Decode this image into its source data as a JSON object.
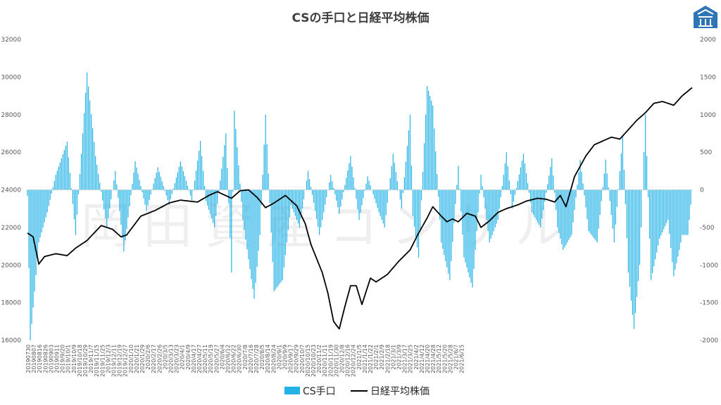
{
  "chart_data": {
    "type": "bar",
    "title": "CSの手口と日経平均株価",
    "watermark": "岡田資産コンサル",
    "colors": {
      "bar": "#22B2E6",
      "line": "#000000",
      "logo": "#2E75B6"
    },
    "legend_position": "bottom",
    "grid": false,
    "y_left": {
      "min": 16000,
      "max": 32000,
      "ticks": [
        16000,
        18000,
        20000,
        22000,
        24000,
        26000,
        28000,
        30000,
        32000
      ]
    },
    "y_right": {
      "min": -2000,
      "max": 2000,
      "ticks": [
        -2000,
        -1500,
        -1000,
        -500,
        0,
        500,
        1000,
        1500,
        2000
      ]
    },
    "x_ticks": [
      "20190730",
      "20190807",
      "20190816",
      "20190826",
      "20190903",
      "20190911",
      "2019/9/20",
      "2019/10/1",
      "2019/10/9",
      "2019/10/18",
      "2019/10/29",
      "2019/11/7",
      "2019/11/15",
      "2019/11/25",
      "2019/12/3",
      "2019/12/11",
      "2019/12/19",
      "2019/12/27",
      "2020/1/10",
      "2020/1/21",
      "2020/1/29",
      "2020/2/6",
      "2020/2/17",
      "2020/2/26",
      "2020/3/5",
      "2020/3/13",
      "2020/3/23",
      "2020/4/1",
      "2020/4/9",
      "2020/4/17",
      "2020/4/27",
      "2020/5/11",
      "2020/5/19",
      "2020/5/27",
      "2020/6/4",
      "2020/6/12",
      "2020/6/22",
      "2020/6/30",
      "2020/7/8",
      "2020/7/16",
      "2020/7/28",
      "2020/8/5",
      "2020/8/14",
      "2020/8/24",
      "2020/9/1",
      "2020/9/9",
      "2020/9/17",
      "2020/9/29",
      "2020/10/7",
      "2020/10/15",
      "2020/10/23",
      "2020/11/2",
      "2020/11/11",
      "2020/11/19",
      "2020/11/30",
      "2020/12/8",
      "2020/12/16",
      "2020/12/24",
      "2021/1/5",
      "2021/1/14",
      "2021/1/22",
      "2021/2/1",
      "2021/2/9",
      "2021/2/18",
      "2021/3/1",
      "2021/3/9",
      "2021/3/17",
      "2021/3/25",
      "2021/4/2",
      "2021/4/12",
      "2021/4/20",
      "2021/4/28",
      "2021/5/12",
      "2021/5/20",
      "2021/5/28",
      "2021/6/7",
      "2021/6/15"
    ],
    "n_points": 470,
    "series": [
      {
        "name": "CS手口",
        "type": "bar",
        "axis": "right",
        "keypoints": [
          [
            0,
            -80
          ],
          [
            2,
            -2000
          ],
          [
            8,
            -700
          ],
          [
            14,
            -300
          ],
          [
            20,
            200
          ],
          [
            28,
            640
          ],
          [
            34,
            -600
          ],
          [
            42,
            1560
          ],
          [
            48,
            450
          ],
          [
            56,
            -500
          ],
          [
            62,
            250
          ],
          [
            68,
            -820
          ],
          [
            76,
            380
          ],
          [
            84,
            -280
          ],
          [
            92,
            300
          ],
          [
            100,
            -200
          ],
          [
            108,
            380
          ],
          [
            116,
            -140
          ],
          [
            122,
            650
          ],
          [
            126,
            -150
          ],
          [
            132,
            -500
          ],
          [
            140,
            750
          ],
          [
            144,
            -1100
          ],
          [
            146,
            1050
          ],
          [
            152,
            -400
          ],
          [
            160,
            -1450
          ],
          [
            164,
            -600
          ],
          [
            168,
            1000
          ],
          [
            174,
            -1350
          ],
          [
            180,
            -1200
          ],
          [
            186,
            -200
          ],
          [
            192,
            -500
          ],
          [
            198,
            250
          ],
          [
            206,
            -600
          ],
          [
            214,
            200
          ],
          [
            220,
            -320
          ],
          [
            228,
            450
          ],
          [
            234,
            -400
          ],
          [
            240,
            180
          ],
          [
            248,
            -300
          ],
          [
            252,
            -500
          ],
          [
            258,
            480
          ],
          [
            264,
            -250
          ],
          [
            270,
            1000
          ],
          [
            272,
            -350
          ],
          [
            276,
            -900
          ],
          [
            282,
            1380
          ],
          [
            286,
            1120
          ],
          [
            292,
            -700
          ],
          [
            298,
            -1200
          ],
          [
            304,
            320
          ],
          [
            308,
            -900
          ],
          [
            314,
            -1300
          ],
          [
            320,
            200
          ],
          [
            326,
            -700
          ],
          [
            332,
            -400
          ],
          [
            338,
            500
          ],
          [
            342,
            -250
          ],
          [
            350,
            480
          ],
          [
            356,
            -300
          ],
          [
            362,
            -500
          ],
          [
            370,
            420
          ],
          [
            374,
            -500
          ],
          [
            378,
            -800
          ],
          [
            384,
            -600
          ],
          [
            390,
            400
          ],
          [
            396,
            -550
          ],
          [
            402,
            -700
          ],
          [
            408,
            400
          ],
          [
            414,
            -700
          ],
          [
            420,
            720
          ],
          [
            424,
            -1100
          ],
          [
            428,
            -1850
          ],
          [
            432,
            -1000
          ],
          [
            436,
            1000
          ],
          [
            440,
            -1200
          ],
          [
            446,
            -650
          ],
          [
            452,
            -400
          ],
          [
            456,
            -1150
          ],
          [
            460,
            -800
          ],
          [
            462,
            -600
          ],
          [
            466,
            -600
          ],
          [
            469,
            0
          ]
        ]
      },
      {
        "name": "日経平均株価",
        "type": "line",
        "axis": "left",
        "keypoints": [
          [
            0,
            21700
          ],
          [
            4,
            21500
          ],
          [
            8,
            20050
          ],
          [
            12,
            20450
          ],
          [
            20,
            20600
          ],
          [
            28,
            20500
          ],
          [
            34,
            20900
          ],
          [
            42,
            21300
          ],
          [
            52,
            22100
          ],
          [
            60,
            21900
          ],
          [
            66,
            21500
          ],
          [
            70,
            21600
          ],
          [
            80,
            22600
          ],
          [
            90,
            22900
          ],
          [
            100,
            23300
          ],
          [
            108,
            23450
          ],
          [
            120,
            23350
          ],
          [
            128,
            23700
          ],
          [
            134,
            23900
          ],
          [
            144,
            23550
          ],
          [
            150,
            23950
          ],
          [
            156,
            24000
          ],
          [
            162,
            23600
          ],
          [
            168,
            23050
          ],
          [
            174,
            23300
          ],
          [
            182,
            23700
          ],
          [
            190,
            23150
          ],
          [
            196,
            22200
          ],
          [
            200,
            21100
          ],
          [
            208,
            19600
          ],
          [
            212,
            18500
          ],
          [
            216,
            17000
          ],
          [
            220,
            16600
          ],
          [
            224,
            17800
          ],
          [
            228,
            18900
          ],
          [
            232,
            18900
          ],
          [
            236,
            17900
          ],
          [
            242,
            19300
          ],
          [
            246,
            19100
          ],
          [
            254,
            19500
          ],
          [
            262,
            20200
          ],
          [
            270,
            20800
          ],
          [
            276,
            21700
          ],
          [
            282,
            22500
          ],
          [
            286,
            23100
          ],
          [
            292,
            22600
          ],
          [
            296,
            22300
          ],
          [
            300,
            22450
          ],
          [
            304,
            22300
          ],
          [
            310,
            22750
          ],
          [
            316,
            22600
          ],
          [
            320,
            22000
          ],
          [
            326,
            22350
          ],
          [
            332,
            22800
          ],
          [
            338,
            23000
          ],
          [
            346,
            23200
          ],
          [
            352,
            23400
          ],
          [
            360,
            23550
          ],
          [
            366,
            23500
          ],
          [
            372,
            23350
          ],
          [
            376,
            23700
          ],
          [
            380,
            23100
          ],
          [
            386,
            24700
          ],
          [
            394,
            25800
          ],
          [
            400,
            26400
          ],
          [
            406,
            26600
          ],
          [
            412,
            26800
          ],
          [
            418,
            26700
          ],
          [
            424,
            27200
          ],
          [
            430,
            27700
          ],
          [
            436,
            28100
          ],
          [
            442,
            28600
          ],
          [
            448,
            28700
          ],
          [
            456,
            28500
          ],
          [
            462,
            29000
          ],
          [
            470,
            29500
          ]
        ]
      }
    ]
  },
  "legend": {
    "bars_label": "CS手口",
    "line_label": "日経平均株価"
  }
}
